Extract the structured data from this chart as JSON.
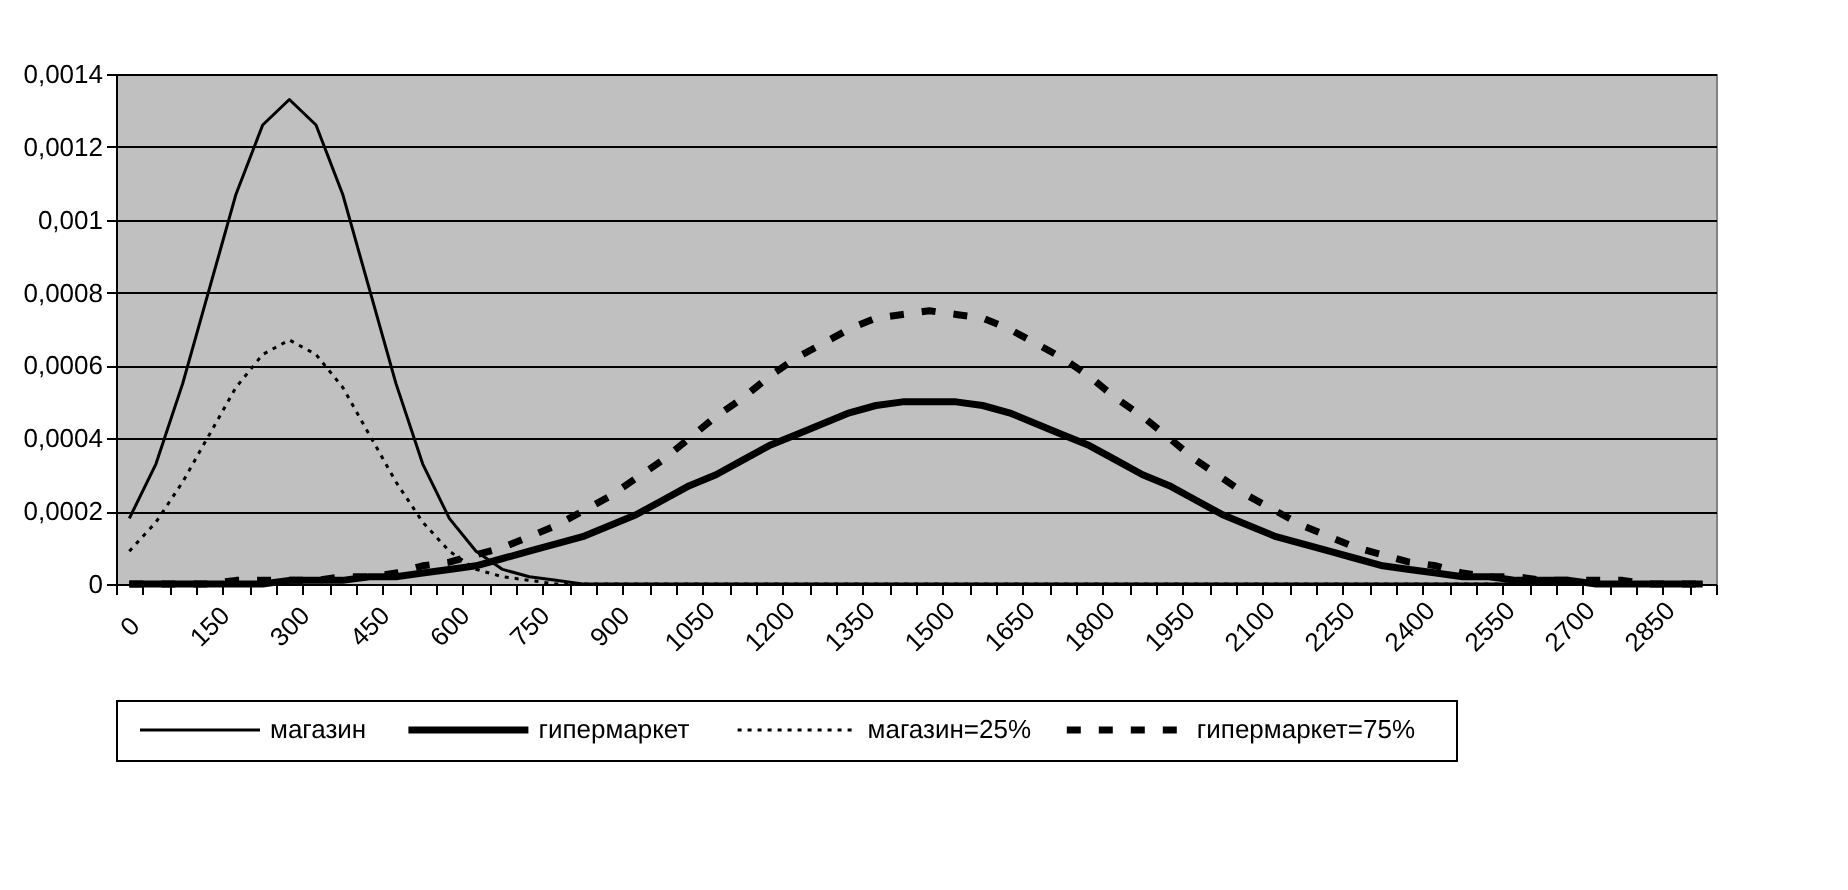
{
  "chart_data": {
    "type": "line",
    "categories": [
      "0",
      null,
      null,
      "150",
      null,
      null,
      "300",
      null,
      null,
      "450",
      null,
      null,
      "600",
      null,
      null,
      "750",
      null,
      null,
      "900",
      null,
      null,
      "1050",
      null,
      null,
      "1200",
      null,
      null,
      "1350",
      null,
      null,
      "1500",
      null,
      null,
      "1650",
      null,
      null,
      "1800",
      null,
      null,
      "1950",
      null,
      null,
      "2100",
      null,
      null,
      "2250",
      null,
      null,
      "2400",
      null,
      null,
      "2550",
      null,
      null,
      "2700",
      null,
      null,
      "2850",
      null,
      null
    ],
    "series": [
      {
        "name": "магазин",
        "color": "#000000",
        "line_style": "solid",
        "values": [
          0.00018,
          0.00033,
          0.00055,
          0.00081,
          0.00107,
          0.00126,
          0.00133,
          0.00126,
          0.00107,
          0.00081,
          0.00055,
          0.00033,
          0.00018,
          9e-05,
          4e-05,
          2e-05,
          1e-05,
          0,
          0,
          0,
          0,
          0,
          0,
          0,
          0,
          0,
          0,
          0,
          0,
          0,
          0,
          0,
          0,
          0,
          0,
          0,
          0,
          0,
          0,
          0,
          0,
          0,
          0,
          0,
          0,
          0,
          0,
          0,
          0,
          0,
          0,
          0,
          0,
          0,
          0,
          0,
          0,
          0,
          0,
          0
        ]
      },
      {
        "name": "гипермаркет",
        "color": "#000000",
        "line_style": "solid",
        "values": [
          0,
          0,
          0,
          0,
          0,
          0,
          1e-05,
          1e-05,
          1e-05,
          2e-05,
          2e-05,
          3e-05,
          4e-05,
          5e-05,
          7e-05,
          9e-05,
          0.00011,
          0.00013,
          0.00016,
          0.00019,
          0.00023,
          0.00027,
          0.0003,
          0.00034,
          0.00038,
          0.00041,
          0.00044,
          0.00047,
          0.00049,
          0.0005,
          0.0005,
          0.0005,
          0.00049,
          0.00047,
          0.00044,
          0.00041,
          0.00038,
          0.00034,
          0.0003,
          0.00027,
          0.00023,
          0.00019,
          0.00016,
          0.00013,
          0.00011,
          9e-05,
          7e-05,
          5e-05,
          4e-05,
          3e-05,
          2e-05,
          2e-05,
          1e-05,
          1e-05,
          1e-05,
          0,
          0,
          0,
          0,
          0
        ]
      },
      {
        "name": "магазин=25%",
        "color": "#000000",
        "line_style": "dotted",
        "values": [
          9e-05,
          0.00017,
          0.00028,
          0.00041,
          0.00054,
          0.00063,
          0.00067,
          0.00063,
          0.00054,
          0.00041,
          0.00028,
          0.00017,
          9e-05,
          4e-05,
          2e-05,
          1e-05,
          0,
          0,
          0,
          0,
          0,
          0,
          0,
          0,
          0,
          0,
          0,
          0,
          0,
          0,
          0,
          0,
          0,
          0,
          0,
          0,
          0,
          0,
          0,
          0,
          0,
          0,
          0,
          0,
          0,
          0,
          0,
          0,
          0,
          0,
          0,
          0,
          0,
          0,
          0,
          0,
          0,
          0,
          0,
          0
        ]
      },
      {
        "name": "гипермаркет=75%",
        "color": "#000000",
        "line_style": "dashed",
        "values": [
          0,
          0,
          0,
          0,
          1e-05,
          1e-05,
          1e-05,
          1e-05,
          2e-05,
          2e-05,
          3e-05,
          5e-05,
          6e-05,
          8e-05,
          0.0001,
          0.00013,
          0.00016,
          0.0002,
          0.00024,
          0.00029,
          0.00034,
          0.0004,
          0.00046,
          0.00051,
          0.00057,
          0.00062,
          0.00066,
          0.0007,
          0.00073,
          0.00074,
          0.00075,
          0.00074,
          0.00073,
          0.0007,
          0.00066,
          0.00062,
          0.00057,
          0.00051,
          0.00046,
          0.0004,
          0.00034,
          0.00029,
          0.00024,
          0.0002,
          0.00016,
          0.00013,
          0.0001,
          8e-05,
          6e-05,
          5e-05,
          3e-05,
          2e-05,
          2e-05,
          1e-05,
          1e-05,
          1e-05,
          1e-05,
          0,
          0,
          0
        ]
      }
    ],
    "ylim": [
      0,
      0.0014
    ],
    "yticks": [
      {
        "value": 0,
        "label": "0"
      },
      {
        "value": 0.0002,
        "label": "0,0002"
      },
      {
        "value": 0.0004,
        "label": "0,0004"
      },
      {
        "value": 0.0006,
        "label": "0,0006"
      },
      {
        "value": 0.0008,
        "label": "0,0008"
      },
      {
        "value": 0.001,
        "label": "0,001"
      },
      {
        "value": 0.0012,
        "label": "0,0012"
      },
      {
        "value": 0.0014,
        "label": "0,0014"
      }
    ],
    "grid": "y",
    "legend": "bottom",
    "marker": "none"
  }
}
